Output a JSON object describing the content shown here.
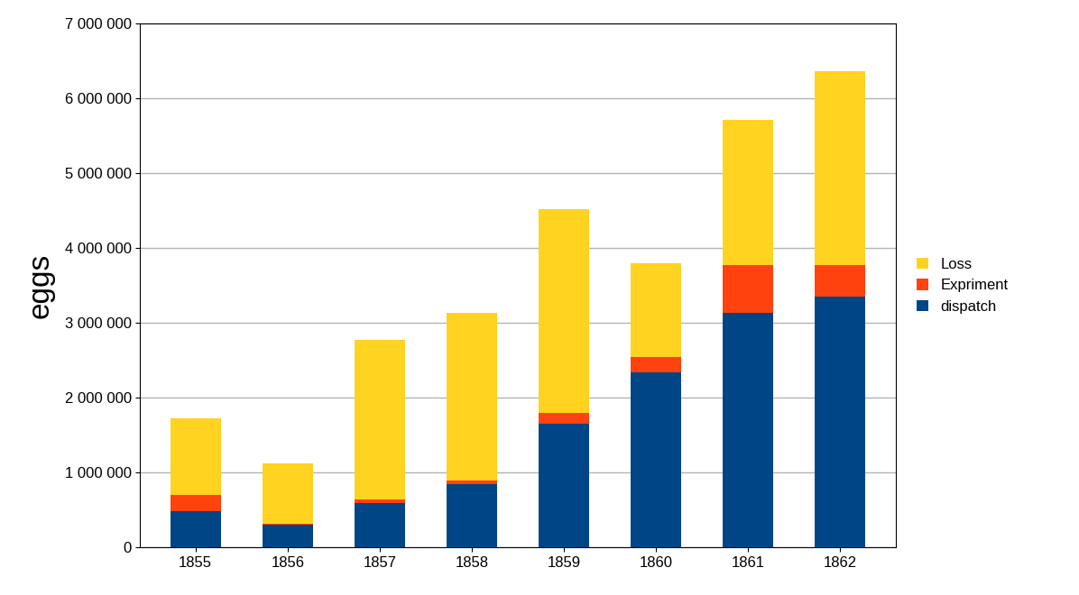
{
  "chart_data": {
    "type": "bar",
    "stacked": true,
    "y_label": "eggs",
    "categories": [
      "1855",
      "1856",
      "1857",
      "1858",
      "1859",
      "1860",
      "1861",
      "1862"
    ],
    "series": [
      {
        "name": "dispatch",
        "color": "#004586",
        "values": [
          480000,
          300000,
          590000,
          850000,
          1650000,
          2340000,
          3140000,
          3350000
        ]
      },
      {
        "name": "Expriment",
        "color": "#ff420e",
        "values": [
          220000,
          10000,
          50000,
          50000,
          150000,
          200000,
          630000,
          420000
        ]
      },
      {
        "name": "Loss",
        "color": "#ffd320",
        "values": [
          1020000,
          810000,
          2140000,
          2240000,
          2720000,
          1260000,
          1950000,
          2600000
        ]
      }
    ],
    "ylim": [
      0,
      7000000
    ],
    "yticks": [
      0,
      {
        "value": 1000000,
        "label": "1 000 000"
      },
      {
        "value": 2000000,
        "label": "2 000 000"
      },
      {
        "value": 3000000,
        "label": "3 000 000"
      },
      {
        "value": 4000000,
        "label": "4 000 000"
      },
      {
        "value": 5000000,
        "label": "5 000 000"
      },
      {
        "value": 6000000,
        "label": "6 000 000"
      },
      {
        "value": 7000000,
        "label": "7 000 000"
      }
    ],
    "grid": true,
    "legend": "right"
  }
}
